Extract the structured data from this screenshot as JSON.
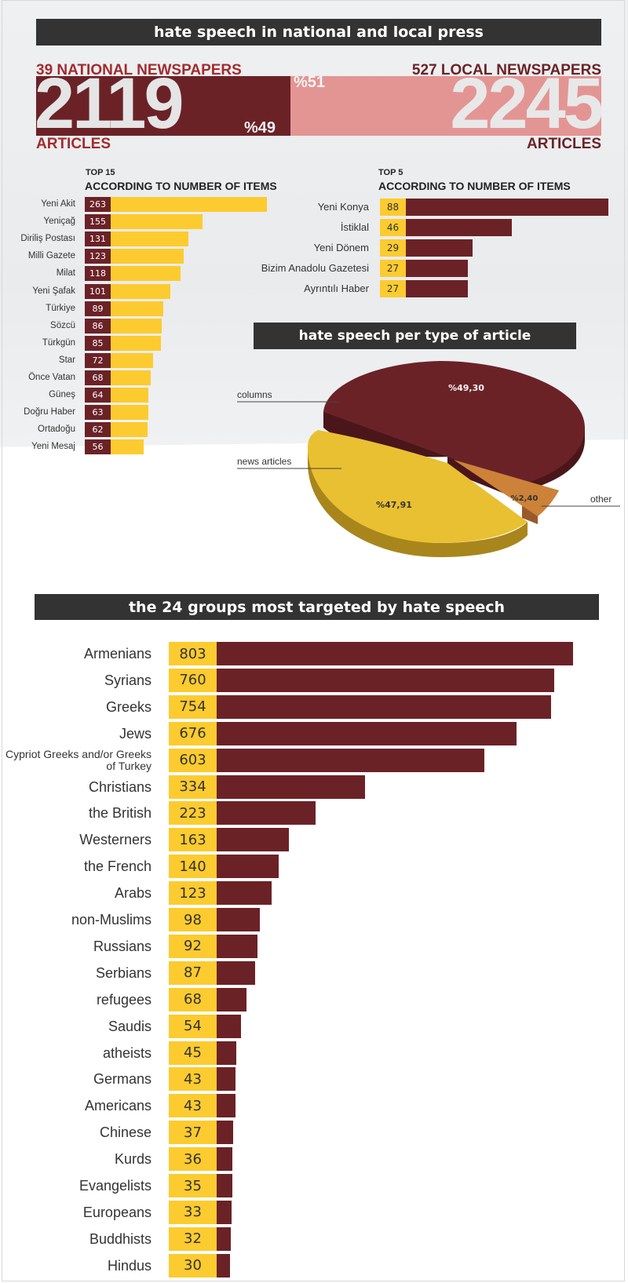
{
  "colors": {
    "dark_red": "#6b2227",
    "yellow": "#fccb2f",
    "pink": "#e39594",
    "header": "#333333",
    "pie_yellow": "#e9c031",
    "pie_orange": "#cc8238"
  },
  "press": {
    "header": "hate speech in national and local press",
    "national_label": "39 NATIONAL NEWSPAPERS",
    "national_count": "2119",
    "national_sub": "ARTICLES",
    "national_pct": "%49",
    "local_label": "527 LOCAL NEWSPAPERS",
    "local_count": "2245",
    "local_sub": "ARTICLES",
    "local_pct": "%51"
  },
  "top15": {
    "title": "TOP 15",
    "subtitle": "ACCORDING TO NUMBER OF ITEMS"
  },
  "top5": {
    "title": "TOP 5",
    "subtitle": "ACCORDING TO NUMBER OF ITEMS"
  },
  "pie": {
    "header": "hate speech per type of article",
    "labels": {
      "columns": "columns",
      "news": "news articles",
      "other": "other"
    },
    "values_text": {
      "columns": "%49,30",
      "news": "%47,91",
      "other": "%2,40"
    }
  },
  "groups_header": "the 24 groups most targeted by hate speech",
  "chart_data": [
    {
      "type": "bar",
      "title": "TOP 15",
      "subtitle": "ACCORDING TO NUMBER OF ITEMS",
      "categories": [
        "Yeni Akit",
        "Yeniçağ",
        "Diriliş Postası",
        "Milli Gazete",
        "Milat",
        "Yeni Şafak",
        "Türkiye",
        "Sözcü",
        "Türkgün",
        "Star",
        "Önce Vatan",
        "Güneş",
        "Doğru Haber",
        "Ortadoğu",
        "Yeni Mesaj"
      ],
      "values": [
        263,
        155,
        131,
        123,
        118,
        101,
        89,
        86,
        85,
        72,
        68,
        64,
        63,
        62,
        56
      ]
    },
    {
      "type": "bar",
      "title": "TOP 5",
      "subtitle": "ACCORDING TO NUMBER OF ITEMS",
      "categories": [
        "Yeni Konya",
        "İstiklal",
        "Yeni Dönem",
        "Bizim Anadolu Gazetesi",
        "Ayrıntılı Haber"
      ],
      "values": [
        88,
        46,
        29,
        27,
        27
      ]
    },
    {
      "type": "pie",
      "title": "hate speech per type of article",
      "categories": [
        "columns",
        "news articles",
        "other"
      ],
      "values": [
        49.3,
        47.91,
        2.4
      ]
    },
    {
      "type": "bar",
      "title": "the 24 groups most targeted by hate speech",
      "categories": [
        "Armenians",
        "Syrians",
        "Greeks",
        "Jews",
        "Cypriot Greeks and/or Greeks of Turkey",
        "Christians",
        "the British",
        "Westerners",
        "the French",
        "Arabs",
        "non-Muslims",
        "Russians",
        "Serbians",
        "refugees",
        "Saudis",
        "atheists",
        "Germans",
        "Americans",
        "Chinese",
        "Kurds",
        "Evangelists",
        "Europeans",
        "Buddhists",
        "Hindus"
      ],
      "values": [
        803,
        760,
        754,
        676,
        603,
        334,
        223,
        163,
        140,
        123,
        98,
        92,
        87,
        68,
        54,
        45,
        43,
        43,
        37,
        36,
        35,
        33,
        32,
        30
      ]
    }
  ]
}
